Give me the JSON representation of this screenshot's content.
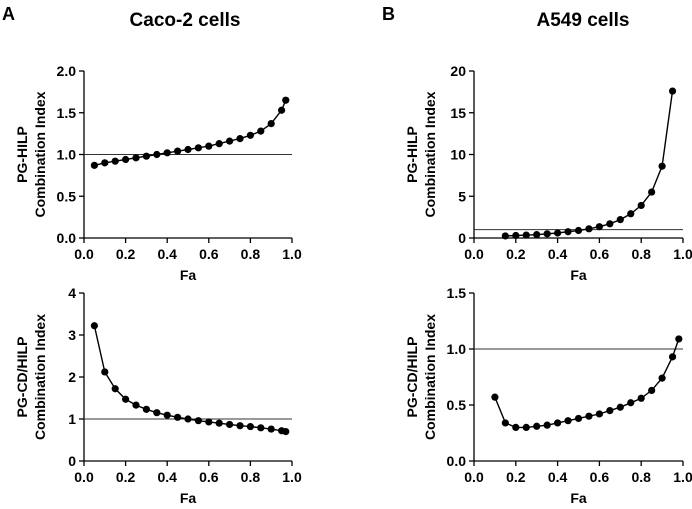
{
  "panels": [
    {
      "letter": "A",
      "title": "Caco-2 cells"
    },
    {
      "letter": "B",
      "title": "A549 cells"
    }
  ],
  "chart_data": [
    {
      "type": "scatter",
      "connected": true,
      "panel": "A",
      "ylabel_lines": [
        "PG-HILP",
        "Combination Index"
      ],
      "xlabel": "Fa",
      "xlim": [
        0,
        1.0
      ],
      "ylim": [
        0,
        2.0
      ],
      "xticks": [
        0.0,
        0.2,
        0.4,
        0.6,
        0.8,
        1.0
      ],
      "xtick_labels": [
        "0.0",
        "0.2",
        "0.4",
        "0.6",
        "0.8",
        "1.0"
      ],
      "yticks": [
        0.0,
        0.5,
        1.0,
        1.5,
        2.0
      ],
      "ytick_labels": [
        "0.0",
        "0.5",
        "1.0",
        "1.5",
        "2.0"
      ],
      "reference_line": 1.0,
      "x": [
        0.05,
        0.1,
        0.15,
        0.2,
        0.25,
        0.3,
        0.35,
        0.4,
        0.45,
        0.5,
        0.55,
        0.6,
        0.65,
        0.7,
        0.75,
        0.8,
        0.85,
        0.9,
        0.95,
        0.97
      ],
      "y": [
        0.87,
        0.9,
        0.92,
        0.94,
        0.96,
        0.98,
        1.0,
        1.02,
        1.04,
        1.06,
        1.08,
        1.1,
        1.13,
        1.16,
        1.19,
        1.23,
        1.28,
        1.37,
        1.53,
        1.65
      ]
    },
    {
      "type": "scatter",
      "connected": true,
      "panel": "B",
      "ylabel_lines": [
        "PG-HILP",
        "Combination Index"
      ],
      "xlabel": "Fa",
      "xlim": [
        0,
        1.0
      ],
      "ylim": [
        0,
        20
      ],
      "xticks": [
        0.0,
        0.2,
        0.4,
        0.6,
        0.8,
        1.0
      ],
      "xtick_labels": [
        "0.0",
        "0.2",
        "0.4",
        "0.6",
        "0.8",
        "1.0"
      ],
      "yticks": [
        0,
        5,
        10,
        15,
        20
      ],
      "ytick_labels": [
        "0",
        "5",
        "10",
        "15",
        "20"
      ],
      "reference_line": 1.0,
      "x": [
        0.15,
        0.2,
        0.25,
        0.3,
        0.35,
        0.4,
        0.45,
        0.5,
        0.55,
        0.6,
        0.65,
        0.7,
        0.75,
        0.8,
        0.85,
        0.9,
        0.95
      ],
      "y": [
        0.25,
        0.3,
        0.35,
        0.4,
        0.5,
        0.6,
        0.75,
        0.9,
        1.1,
        1.35,
        1.7,
        2.2,
        2.9,
        3.9,
        5.5,
        8.6,
        17.6
      ]
    },
    {
      "type": "scatter",
      "connected": true,
      "panel": "A",
      "ylabel_lines": [
        "PG-CD/HILP",
        "Combination Index"
      ],
      "xlabel": "Fa",
      "xlim": [
        0,
        1.0
      ],
      "ylim": [
        0,
        4
      ],
      "xticks": [
        0.0,
        0.2,
        0.4,
        0.6,
        0.8,
        1.0
      ],
      "xtick_labels": [
        "0.0",
        "0.2",
        "0.4",
        "0.6",
        "0.8",
        "1.0"
      ],
      "yticks": [
        0,
        1,
        2,
        3,
        4
      ],
      "ytick_labels": [
        "0",
        "1",
        "2",
        "3",
        "4"
      ],
      "reference_line": 1.0,
      "x": [
        0.05,
        0.1,
        0.15,
        0.2,
        0.25,
        0.3,
        0.35,
        0.4,
        0.45,
        0.5,
        0.55,
        0.6,
        0.65,
        0.7,
        0.75,
        0.8,
        0.85,
        0.9,
        0.95,
        0.97
      ],
      "y": [
        3.22,
        2.12,
        1.72,
        1.47,
        1.33,
        1.23,
        1.15,
        1.09,
        1.04,
        1.0,
        0.96,
        0.93,
        0.9,
        0.87,
        0.84,
        0.82,
        0.79,
        0.76,
        0.72,
        0.7
      ]
    },
    {
      "type": "scatter",
      "connected": true,
      "panel": "B",
      "ylabel_lines": [
        "PG-CD/HILP",
        "Combination Index"
      ],
      "xlabel": "Fa",
      "xlim": [
        0,
        1.0
      ],
      "ylim": [
        0,
        1.5
      ],
      "xticks": [
        0.0,
        0.2,
        0.4,
        0.6,
        0.8,
        1.0
      ],
      "xtick_labels": [
        "0.0",
        "0.2",
        "0.4",
        "0.6",
        "0.8",
        "1.0"
      ],
      "yticks": [
        0.0,
        0.5,
        1.0,
        1.5
      ],
      "ytick_labels": [
        "0.0",
        "0.5",
        "1.0",
        "1.5"
      ],
      "reference_line": 1.0,
      "x": [
        0.1,
        0.15,
        0.2,
        0.25,
        0.3,
        0.35,
        0.4,
        0.45,
        0.5,
        0.55,
        0.6,
        0.65,
        0.7,
        0.75,
        0.8,
        0.85,
        0.9,
        0.95,
        0.98
      ],
      "y": [
        0.57,
        0.34,
        0.3,
        0.3,
        0.31,
        0.32,
        0.34,
        0.36,
        0.38,
        0.4,
        0.42,
        0.45,
        0.48,
        0.52,
        0.56,
        0.63,
        0.74,
        0.93,
        1.09
      ]
    }
  ]
}
